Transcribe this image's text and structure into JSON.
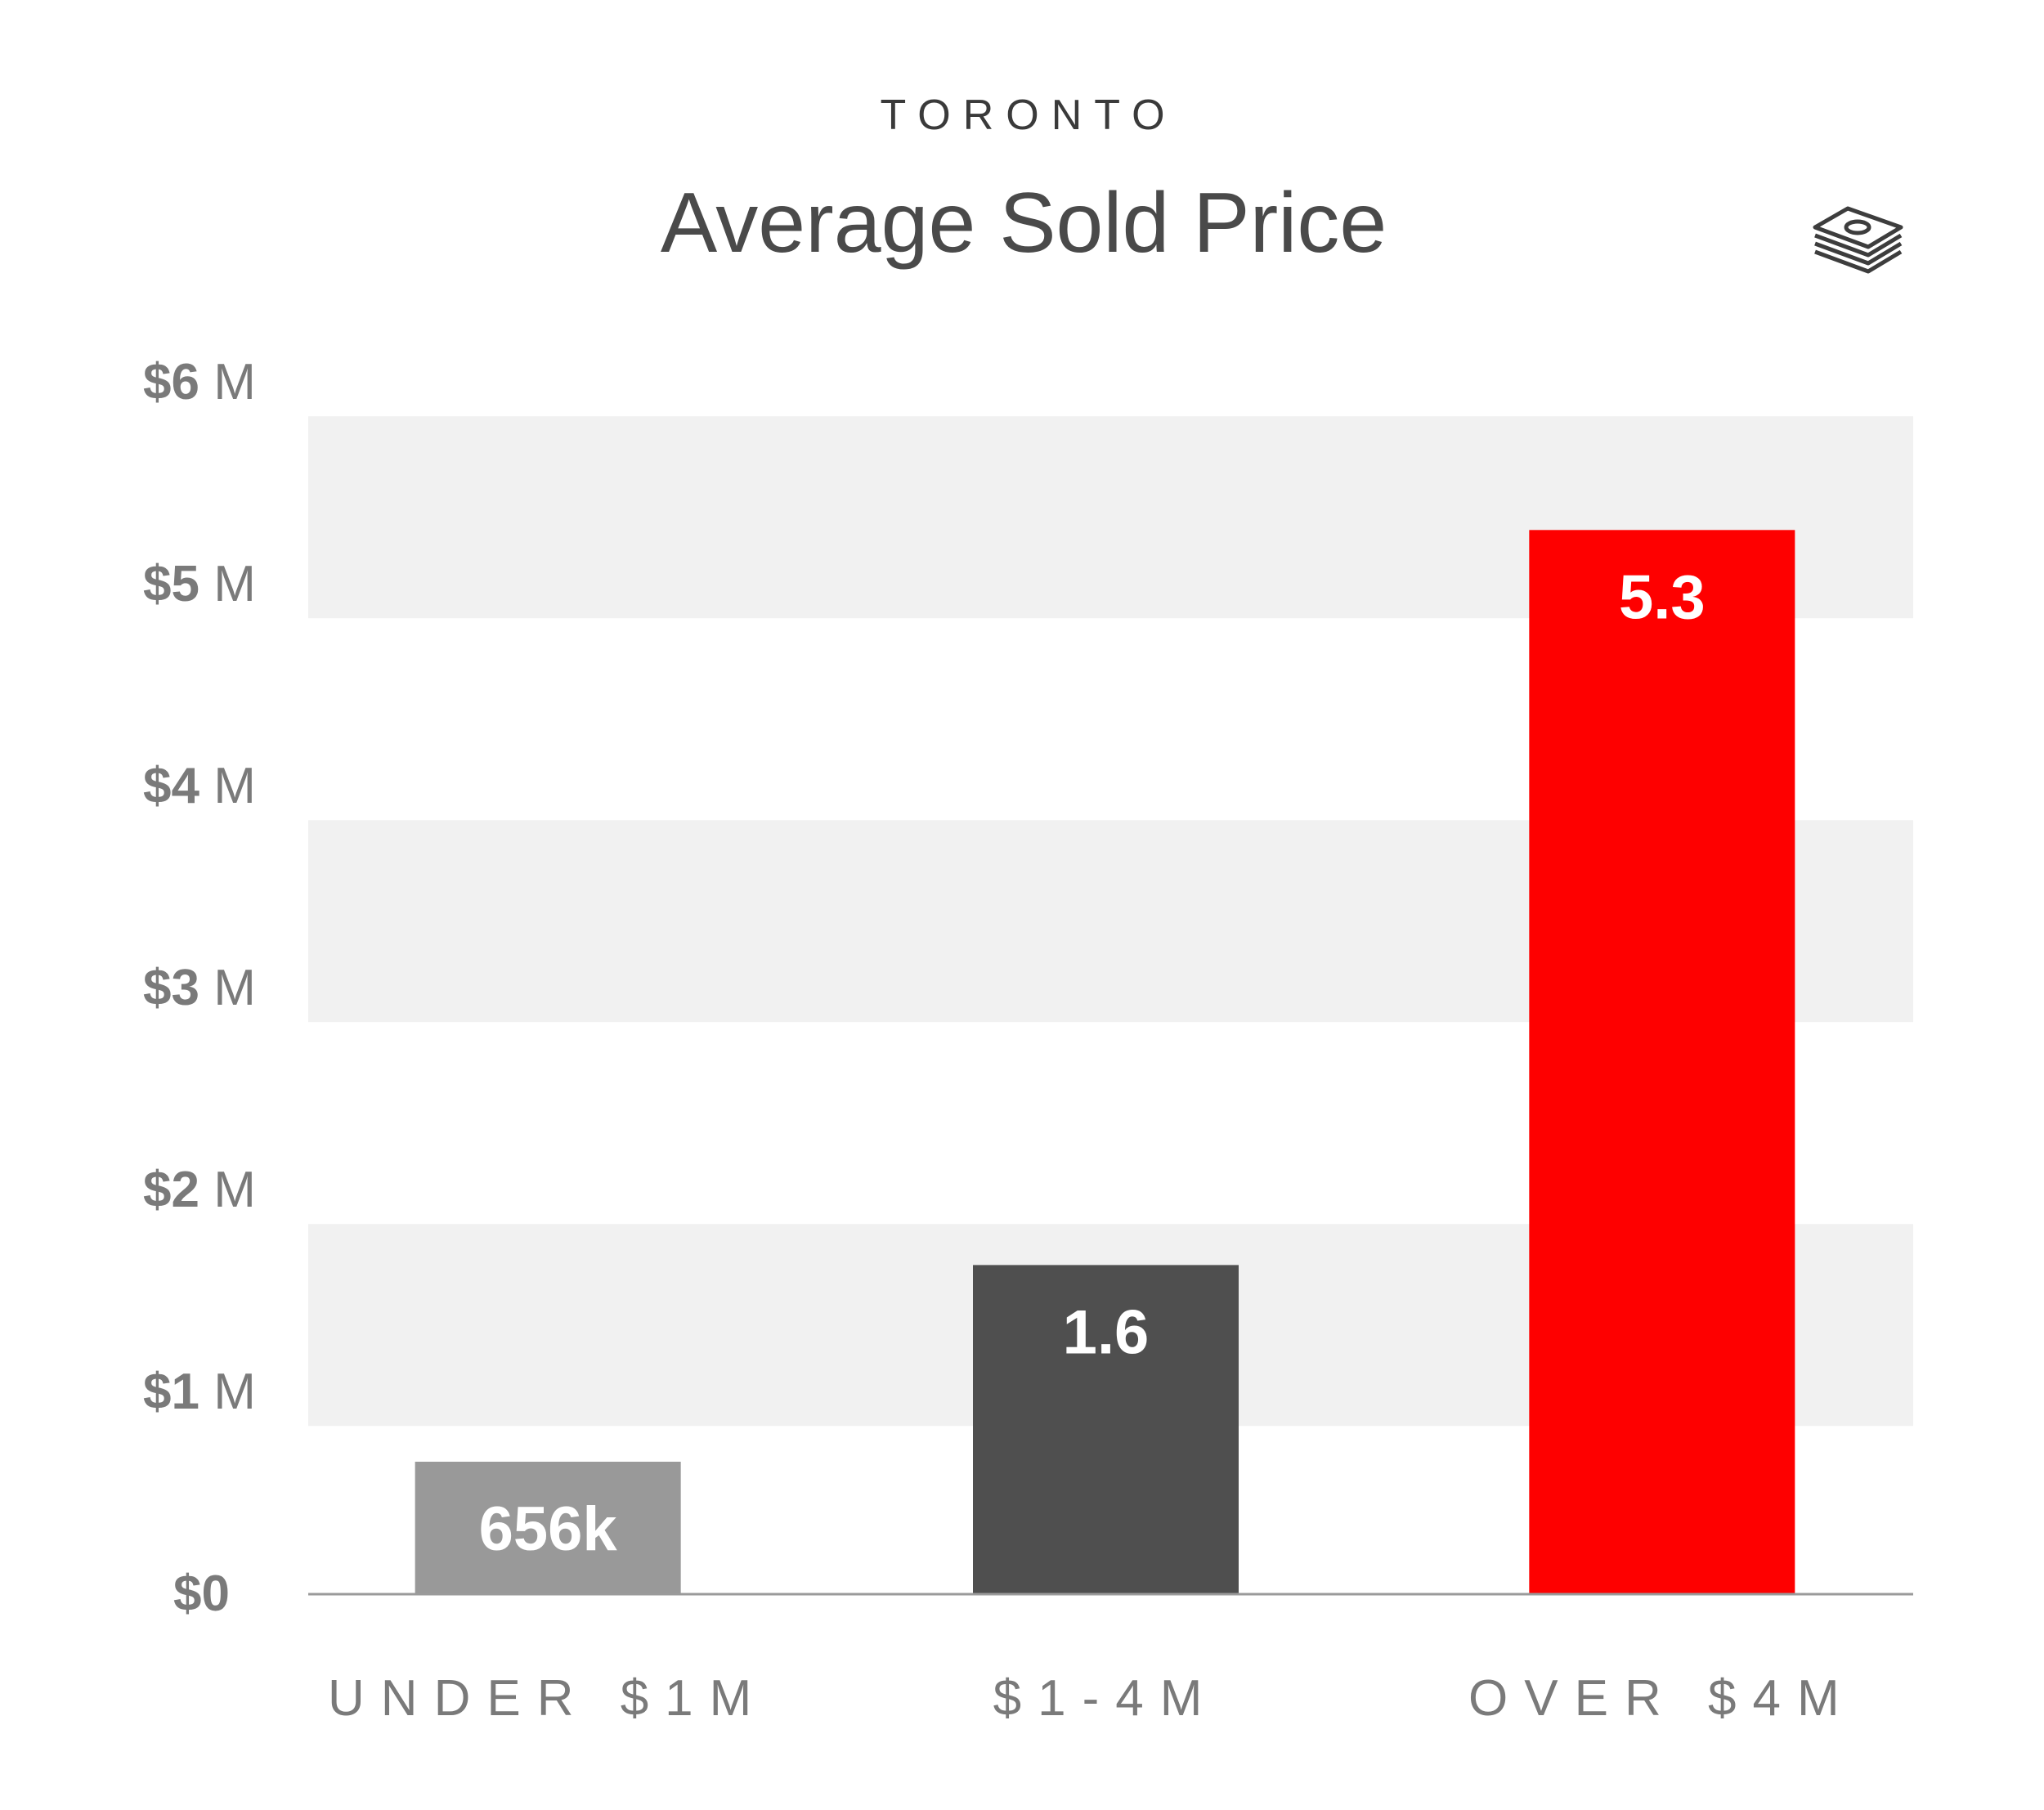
{
  "header": {
    "subtitle": "TORONTO",
    "title": "Average Sold Price",
    "icon": "money-stack-icon"
  },
  "colors": {
    "band": "#f1f1f1",
    "axis_text": "#7a7a7a",
    "category_text": "#7a7a7a",
    "baseline": "#9a9a9a",
    "title": "#4a4a4a",
    "label": "#ffffff"
  },
  "chart_data": {
    "type": "bar",
    "title": "Average Sold Price",
    "subtitle": "TORONTO",
    "xlabel": "",
    "ylabel": "",
    "ylim": [
      0,
      6
    ],
    "y_ticks": [
      {
        "value": 0,
        "prefix": "$0",
        "suffix": ""
      },
      {
        "value": 1,
        "prefix": "$1",
        "suffix": " M"
      },
      {
        "value": 2,
        "prefix": "$2",
        "suffix": " M"
      },
      {
        "value": 3,
        "prefix": "$3",
        "suffix": " M"
      },
      {
        "value": 4,
        "prefix": "$4",
        "suffix": " M"
      },
      {
        "value": 5,
        "prefix": "$5",
        "suffix": " M"
      },
      {
        "value": 6,
        "prefix": "$6",
        "suffix": " M"
      }
    ],
    "shaded_bands": [
      [
        0.8333,
        1.8333
      ],
      [
        2.8333,
        3.8333
      ],
      [
        4.8333,
        5.8333
      ]
    ],
    "grid": false,
    "legend": "none",
    "categories": [
      "UNDER $1M",
      "$1-4M",
      "OVER $4M"
    ],
    "values": [
      0.656,
      1.63,
      5.27
    ],
    "data_labels": [
      "656k",
      "1.6",
      "5.3"
    ],
    "bar_colors": [
      "#999999",
      "#4f4f4f",
      "#fe0000"
    ]
  }
}
